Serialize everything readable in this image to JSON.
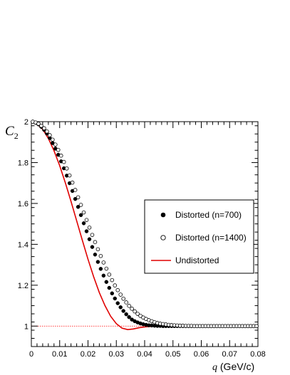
{
  "chart_data": {
    "type": "scatter",
    "title": "",
    "xlabel_var": "q",
    "xlabel_unit": " (GeV/c)",
    "ylabel_var": "C",
    "ylabel_sub": "2",
    "xlim": [
      0,
      0.08
    ],
    "ylim": [
      0.9,
      2.0
    ],
    "xticks": [
      0,
      0.01,
      0.02,
      0.03,
      0.04,
      0.05,
      0.06,
      0.07,
      0.08
    ],
    "xtick_labels": [
      "0",
      "0.01",
      "0.02",
      "0.03",
      "0.04",
      "0.05",
      "0.06",
      "0.07",
      "0.08"
    ],
    "yticks": [
      1.0,
      1.2,
      1.4,
      1.6,
      1.8,
      2.0
    ],
    "ytick_labels": [
      "1",
      "1.2",
      "1.4",
      "1.6",
      "1.8",
      "2"
    ],
    "grid": false,
    "legend_position": "right",
    "reference_line": {
      "y": 1.0,
      "color": "#ff0000",
      "style": "dotted"
    },
    "series": [
      {
        "name": "Distorted (n=700)",
        "marker": "filled-circle",
        "color": "#000000",
        "x": [
          0.0005,
          0.0015,
          0.0025,
          0.0035,
          0.0045,
          0.0055,
          0.0065,
          0.0075,
          0.0085,
          0.0095,
          0.0105,
          0.0115,
          0.0125,
          0.0135,
          0.0145,
          0.0155,
          0.0165,
          0.0175,
          0.0185,
          0.0195,
          0.0205,
          0.0215,
          0.0225,
          0.0235,
          0.0245,
          0.0255,
          0.0265,
          0.0275,
          0.0285,
          0.0295,
          0.0305,
          0.0315,
          0.0325,
          0.0335,
          0.0345,
          0.0355,
          0.0365,
          0.0375,
          0.0385,
          0.0395,
          0.0405,
          0.0415,
          0.0425,
          0.0435,
          0.0445,
          0.0455,
          0.0465,
          0.0475,
          0.0485,
          0.0495,
          0.0505,
          0.0515,
          0.0525,
          0.0535,
          0.0545,
          0.0555,
          0.0565,
          0.0575,
          0.0585,
          0.0595,
          0.0605,
          0.0615,
          0.0625,
          0.0635,
          0.0645,
          0.0655,
          0.0665,
          0.0675,
          0.0685,
          0.0695,
          0.0705,
          0.0715,
          0.0725,
          0.0735,
          0.0745,
          0.0755,
          0.0765,
          0.0775,
          0.0785,
          0.0795
        ],
        "y": [
          2.0,
          1.995,
          1.987,
          1.975,
          1.96,
          1.942,
          1.92,
          1.895,
          1.868,
          1.838,
          1.806,
          1.772,
          1.736,
          1.699,
          1.661,
          1.622,
          1.583,
          1.543,
          1.503,
          1.464,
          1.425,
          1.387,
          1.35,
          1.314,
          1.28,
          1.247,
          1.216,
          1.187,
          1.16,
          1.135,
          1.112,
          1.092,
          1.074,
          1.058,
          1.044,
          1.032,
          1.024,
          1.018,
          1.013,
          1.009,
          1.006,
          1.004,
          1.003,
          1.002,
          1.001,
          1.001,
          1.0,
          1.0,
          1.0,
          1.0,
          1.0,
          1.0,
          1.0,
          1.0,
          1.0,
          1.0,
          1.0,
          1.0,
          1.0,
          1.0,
          1.0,
          1.0,
          1.0,
          1.0,
          1.0,
          1.0,
          1.0,
          1.0,
          1.0,
          1.0,
          1.0,
          1.0,
          1.0,
          1.0,
          1.0,
          1.0,
          1.0,
          1.0,
          1.0,
          1.0
        ]
      },
      {
        "name": "Distorted (n=1400)",
        "marker": "open-circle",
        "color": "#000000",
        "x": [
          0.0005,
          0.0015,
          0.0025,
          0.0035,
          0.0045,
          0.0055,
          0.0065,
          0.0075,
          0.0085,
          0.0095,
          0.0105,
          0.0115,
          0.0125,
          0.0135,
          0.0145,
          0.0155,
          0.0165,
          0.0175,
          0.0185,
          0.0195,
          0.0205,
          0.0215,
          0.0225,
          0.0235,
          0.0245,
          0.0255,
          0.0265,
          0.0275,
          0.0285,
          0.0295,
          0.0305,
          0.0315,
          0.0325,
          0.0335,
          0.0345,
          0.0355,
          0.0365,
          0.0375,
          0.0385,
          0.0395,
          0.0405,
          0.0415,
          0.0425,
          0.0435,
          0.0445,
          0.0455,
          0.0465,
          0.0475,
          0.0485,
          0.0495,
          0.0505,
          0.0515,
          0.0525,
          0.0535,
          0.0545,
          0.0555,
          0.0565,
          0.0575,
          0.0585,
          0.0595,
          0.0605,
          0.0615,
          0.0625,
          0.0635,
          0.0645,
          0.0655,
          0.0665,
          0.0675,
          0.0685,
          0.0695,
          0.0705,
          0.0715,
          0.0725,
          0.0735,
          0.0745,
          0.0755,
          0.0765,
          0.0775,
          0.0785,
          0.0795
        ],
        "y": [
          2.0,
          1.996,
          1.99,
          1.98,
          1.968,
          1.952,
          1.934,
          1.912,
          1.888,
          1.862,
          1.834,
          1.803,
          1.771,
          1.737,
          1.702,
          1.666,
          1.63,
          1.593,
          1.556,
          1.519,
          1.482,
          1.446,
          1.411,
          1.376,
          1.343,
          1.311,
          1.281,
          1.252,
          1.225,
          1.199,
          1.176,
          1.154,
          1.134,
          1.116,
          1.099,
          1.085,
          1.072,
          1.06,
          1.05,
          1.042,
          1.035,
          1.029,
          1.024,
          1.019,
          1.015,
          1.012,
          1.01,
          1.008,
          1.006,
          1.005,
          1.004,
          1.003,
          1.002,
          1.002,
          1.001,
          1.001,
          1.001,
          1.0,
          1.0,
          1.0,
          1.0,
          1.0,
          1.0,
          1.0,
          1.0,
          1.0,
          1.0,
          1.0,
          1.0,
          1.0,
          1.0,
          1.0,
          1.0,
          1.0,
          1.0,
          1.0,
          1.0,
          1.0,
          1.0,
          1.0
        ]
      },
      {
        "name": "Undistorted",
        "marker": "line",
        "color": "#e00000",
        "x": [
          0,
          0.002,
          0.004,
          0.006,
          0.008,
          0.01,
          0.012,
          0.014,
          0.016,
          0.018,
          0.02,
          0.022,
          0.024,
          0.026,
          0.028,
          0.03,
          0.032,
          0.034,
          0.036,
          0.038,
          0.04,
          0.042,
          0.044,
          0.046,
          0.048,
          0.05,
          0.052,
          0.054,
          0.056,
          0.058,
          0.06,
          0.065,
          0.07,
          0.075,
          0.08
        ],
        "y": [
          2.0,
          1.99,
          1.963,
          1.918,
          1.858,
          1.785,
          1.701,
          1.61,
          1.515,
          1.42,
          1.327,
          1.241,
          1.164,
          1.1,
          1.048,
          1.012,
          0.99,
          0.983,
          0.986,
          0.992,
          0.996,
          0.998,
          0.999,
          1.0,
          1.0,
          1.0,
          1.0,
          1.0,
          1.0,
          1.0,
          1.0,
          1.0,
          1.0,
          1.0,
          1.0
        ]
      }
    ]
  }
}
